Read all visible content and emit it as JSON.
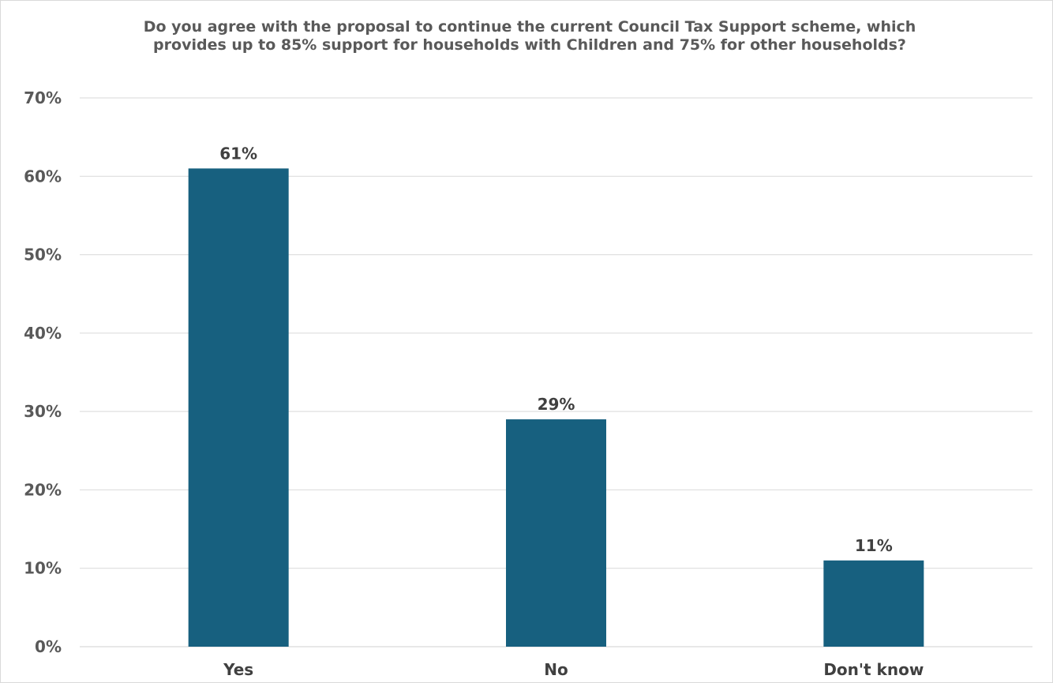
{
  "chart_data": {
    "type": "bar",
    "title": "Do you agree with the proposal to continue the current Council Tax Support scheme, which provides up to 85% support for households with Children and 75% for other households?",
    "categories": [
      "Yes",
      "No",
      "Don't know"
    ],
    "values": [
      61,
      29,
      11
    ],
    "data_labels": [
      "61%",
      "29%",
      "11%"
    ],
    "ylim": [
      0,
      70
    ],
    "yticks": [
      0,
      10,
      20,
      30,
      40,
      50,
      60,
      70
    ],
    "ytick_labels": [
      "0%",
      "10%",
      "20%",
      "30%",
      "40%",
      "50%",
      "60%",
      "70%"
    ],
    "xlabel": "",
    "ylabel": "",
    "grid": true,
    "legend": "none",
    "colors": {
      "bar": "#17607f",
      "grid": "#d9d9d9",
      "text": "#595959"
    }
  }
}
